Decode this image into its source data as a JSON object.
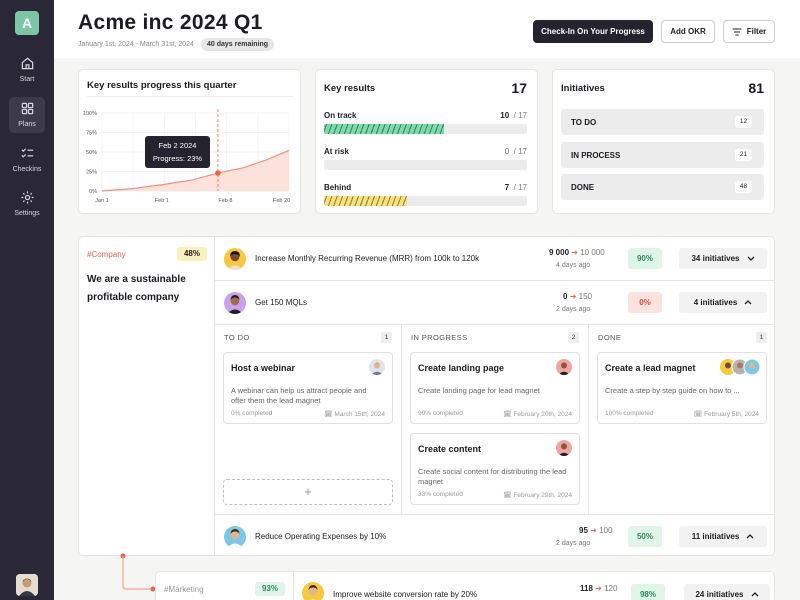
{
  "app": {
    "logo_letter": "A"
  },
  "sidebar": {
    "items": [
      {
        "label": "Start",
        "icon": "home-icon"
      },
      {
        "label": "Plans",
        "icon": "grid-icon"
      },
      {
        "label": "Checkins",
        "icon": "checklist-icon"
      },
      {
        "label": "Settings",
        "icon": "gear-icon"
      }
    ]
  },
  "header": {
    "title": "Acme inc 2024 Q1",
    "dates": "January 1st, 2024 - March 31st, 2024",
    "remaining": "40 days remaining",
    "checkin_label": "Check-In On Your Progress",
    "add_okr_label": "Add OKR",
    "filter_label": "Filter"
  },
  "progress_card": {
    "title": "Key results progress this quarter"
  },
  "chart_data": {
    "type": "area",
    "title": "Key results progress this quarter",
    "x_ticks": [
      "Jan 1",
      "Feb 1",
      "Feb 8",
      "Feb 20"
    ],
    "y_ticks": [
      "0%",
      "25%",
      "50%",
      "75%",
      "100%"
    ],
    "ylim": [
      0,
      100
    ],
    "x": [
      0,
      8,
      16,
      24,
      31,
      38,
      44,
      50
    ],
    "values": [
      0,
      3,
      8,
      14,
      23,
      30,
      40,
      52
    ],
    "tooltip": {
      "date": "Feb 2 2024",
      "label": "Progress: 23%"
    },
    "colors": {
      "line": "#f08c7c",
      "fill": "#fde2dc",
      "marker": "#ee6347"
    }
  },
  "key_results": {
    "title": "Key results",
    "total": "17",
    "items": [
      {
        "label": "On track",
        "count": "10",
        "total": "/ 17",
        "fraction": 0.59,
        "color": "#79dba7"
      },
      {
        "label": "At risk",
        "count": "0",
        "total": "/ 17",
        "fraction": 0.0,
        "color": "#f4a49c"
      },
      {
        "label": "Behind",
        "count": "7",
        "total": "/ 17",
        "fraction": 0.41,
        "color": "#f7e17a"
      }
    ]
  },
  "initiatives": {
    "title": "Initiatives",
    "total": "81",
    "rows": [
      {
        "label": "TO DO",
        "count": "12"
      },
      {
        "label": "IN PROCESS",
        "count": "21"
      },
      {
        "label": "DONE",
        "count": "48"
      }
    ]
  },
  "company": {
    "tag": "#Company",
    "pct": "48%",
    "description": "We are a sustainable profitable company"
  },
  "objectives": [
    {
      "title": "Increase Monthly Recurring Revenue (MRR) from 100k to 120k",
      "current": "9 000",
      "target": "10 000",
      "ago": "4 days ago",
      "pct": "90%",
      "pct_bg": "#dff5e7",
      "pct_color": "#2f8b57",
      "initiatives": "34 initiatives",
      "chevron": "down"
    },
    {
      "title": "Get 150 MQLs",
      "current": "0",
      "target": "150",
      "ago": "2 days ago",
      "pct": "0%",
      "pct_bg": "#fde2df",
      "pct_color": "#d34a3b",
      "initiatives": "4 initiatives",
      "chevron": "up"
    },
    {
      "title": "Reduce Operating Expenses by 10%",
      "current": "95",
      "target": "100",
      "ago": "2 days ago",
      "pct": "50%",
      "pct_bg": "#dff5e7",
      "pct_color": "#2f8b57",
      "initiatives": "11 initiatives",
      "chevron": "up"
    }
  ],
  "board": {
    "columns": [
      {
        "title": "TO DO",
        "count": "1"
      },
      {
        "title": "IN PROGRESS",
        "count": "2"
      },
      {
        "title": "DONE",
        "count": "1"
      }
    ],
    "add_symbol": "+",
    "tasks": {
      "host_webinar": {
        "title": "Host a webinar",
        "desc": "A webinar can help us attract people and offer them the lead magnet",
        "completed": "0% completed",
        "date": "March 15th, 2024"
      },
      "landing_page": {
        "title": "Create landing page",
        "desc": "Create landing page for lead magnet",
        "completed": "90% completed",
        "date": "February 20th, 2024"
      },
      "content": {
        "title": "Create content",
        "desc": "Create social content for distributing the lead magnet",
        "completed": "33% completed",
        "date": "February 29th, 2024"
      },
      "lead_magnet": {
        "title": "Create a lead magnet",
        "desc": "Create a step by step guide on how to ...",
        "completed": "100% completed",
        "date": "February 5th, 2024"
      }
    }
  },
  "marketing": {
    "tag": "#Marketing",
    "pct": "93%",
    "objective": {
      "title": "Improve website conversion rate by 20%",
      "current": "118",
      "target": "120",
      "pct": "98%",
      "initiatives": "24 initiatives"
    }
  }
}
